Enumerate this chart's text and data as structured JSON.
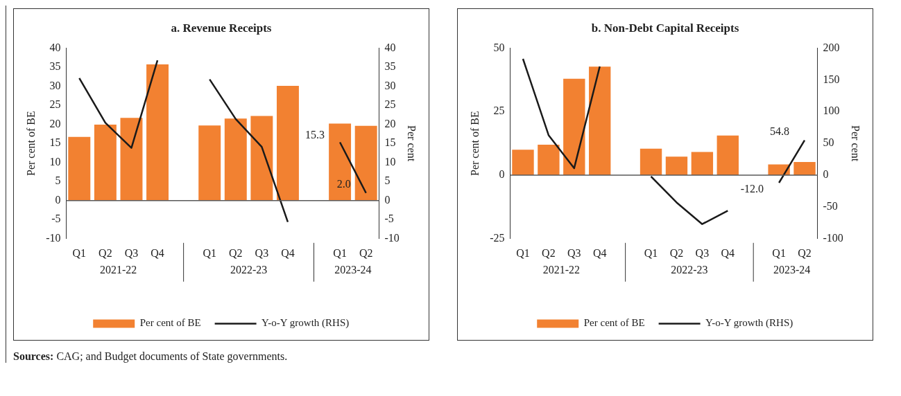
{
  "chart_data": [
    {
      "type": "bar",
      "title": "a. Revenue Receipts",
      "ylabel": "Per cent of BE",
      "y2label": "Per cent",
      "categories": [
        "Q1",
        "Q2",
        "Q3",
        "Q4",
        null,
        "Q1",
        "Q2",
        "Q3",
        "Q4",
        null,
        "Q1",
        "Q2"
      ],
      "series": [
        {
          "name": "Per cent of BE",
          "color": "#f28131",
          "values": [
            16.7,
            19.9,
            21.7,
            35.7,
            null,
            19.7,
            21.5,
            22.2,
            30.1,
            null,
            20.2,
            19.6
          ]
        },
        {
          "name": "Y-o-Y growth (RHS)",
          "type": "line",
          "axis": "y2",
          "color": "#1a1a1a",
          "values": [
            32.1,
            20.4,
            13.8,
            36.8,
            null,
            31.8,
            21.4,
            14.1,
            -5.6,
            null,
            15.3,
            2.0
          ],
          "value_labels": [
            null,
            null,
            null,
            null,
            null,
            null,
            null,
            null,
            null,
            null,
            "15.3",
            "2.0"
          ]
        }
      ],
      "ylim": [
        -10,
        40
      ],
      "yticks": [
        -10,
        -5,
        0,
        5,
        10,
        15,
        20,
        25,
        30,
        35,
        40
      ],
      "y2lim": [
        -10,
        40
      ],
      "y2ticks": [
        -10,
        -5,
        0,
        5,
        10,
        15,
        20,
        25,
        30,
        35,
        40
      ],
      "grid": false,
      "legend": "bottom",
      "marker": "none",
      "ref_lines": [
        {
          "axis": "y",
          "value": 0,
          "color": "#595959"
        }
      ],
      "annotations": [
        "2021-22",
        "2022-23",
        "2023-24",
        "Sources: CAG; and Budget documents of State governments."
      ]
    },
    {
      "type": "bar",
      "title": "b. Non-Debt Capital Receipts",
      "ylabel": "Per cent of BE",
      "y2label": "Per cent",
      "categories": [
        "Q1",
        "Q2",
        "Q3",
        "Q4",
        null,
        "Q1",
        "Q2",
        "Q3",
        "Q4",
        null,
        "Q1",
        "Q2"
      ],
      "series": [
        {
          "name": "Per cent of BE",
          "color": "#f28131",
          "values": [
            10.0,
            12.0,
            37.9,
            42.7,
            null,
            10.4,
            7.3,
            9.1,
            15.6,
            null,
            4.2,
            5.2
          ]
        },
        {
          "name": "Y-o-Y growth (RHS)",
          "type": "line",
          "axis": "y2",
          "color": "#1a1a1a",
          "values": [
            183,
            63,
            11,
            171,
            null,
            -2,
            -43,
            -77,
            -56,
            null,
            -12.0,
            54.8
          ],
          "value_labels": [
            null,
            null,
            null,
            null,
            null,
            null,
            null,
            null,
            null,
            null,
            "-12.0",
            "54.8"
          ]
        }
      ],
      "ylim": [
        -25,
        50
      ],
      "yticks": [
        -25,
        0,
        25,
        50
      ],
      "y2lim": [
        -100,
        200
      ],
      "y2ticks": [
        -100,
        -50,
        0,
        50,
        100,
        150,
        200
      ],
      "grid": false,
      "legend": "bottom",
      "marker": "none",
      "ref_lines": [
        {
          "axis": "y",
          "value": 0,
          "color": "#595959"
        }
      ],
      "annotations": [
        "2021-22",
        "2022-23",
        "2023-24"
      ]
    }
  ]
}
